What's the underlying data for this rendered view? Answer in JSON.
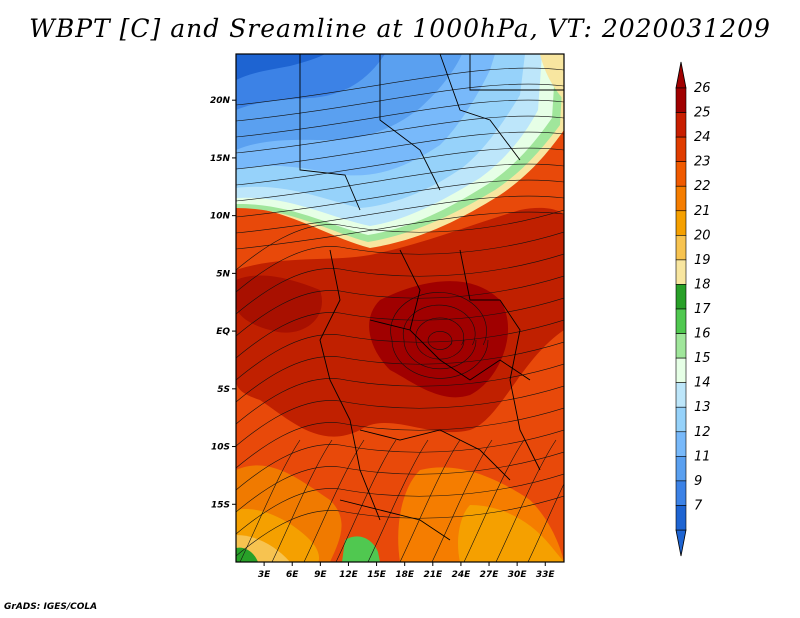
{
  "title": "WBPT [C] and Sreamline at 1000hPa, VT: 2020031209",
  "footer": "GrADS: IGES/COLA",
  "map": {
    "lon_range": [
      0,
      35
    ],
    "lat_range": [
      -20,
      24
    ],
    "lat_ticks": [
      "20N",
      "15N",
      "10N",
      "5N",
      "EQ",
      "5S",
      "10S",
      "15S"
    ],
    "lon_ticks": [
      "3E",
      "6E",
      "9E",
      "12E",
      "15E",
      "18E",
      "21E",
      "24E",
      "27E",
      "30E",
      "33E"
    ]
  },
  "colorbar": {
    "labels": [
      "26",
      "25",
      "24",
      "23",
      "22",
      "21",
      "20",
      "19",
      "18",
      "17",
      "16",
      "15",
      "14",
      "13",
      "12",
      "11",
      "9",
      "7"
    ],
    "colors": [
      "#a00000",
      "#c81e00",
      "#e03c00",
      "#f05a00",
      "#f57d00",
      "#f5a000",
      "#f7c350",
      "#f8e6a0",
      "#28a028",
      "#50c850",
      "#a0e69b",
      "#e6ffe6",
      "#bde6fa",
      "#96d2fa",
      "#78b9fa",
      "#5aa0f0",
      "#3c82e6",
      "#1e64d2"
    ]
  }
}
